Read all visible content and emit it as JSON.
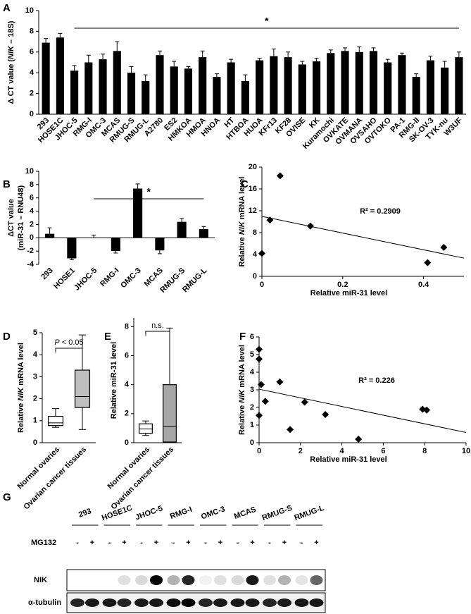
{
  "chart_data": [
    {
      "type": "bar",
      "panel": "A",
      "ylabel": "Δ CT value (NIK – 18S)",
      "ylabel_italic": "NIK",
      "categories": [
        "293",
        "HOSE1C",
        "JHOC-5",
        "RMG-I",
        "OMC-3",
        "MCAS",
        "RMUG-S",
        "RMUG-L",
        "A2780",
        "ES2",
        "HMKOA",
        "HMOA",
        "HNOA",
        "HT",
        "HTBOA",
        "HUOA",
        "KFr13",
        "KF28",
        "OVISE",
        "KK",
        "Kuramochi",
        "OVKATE",
        "OVMANA",
        "OVSAHO",
        "OVTOKO",
        "PA-1",
        "RMG-II",
        "SK-OV-3",
        "TYK-nu",
        "W3UF"
      ],
      "values": [
        6.9,
        7.4,
        4.2,
        5.0,
        5.3,
        6.1,
        4.0,
        3.2,
        5.7,
        4.6,
        4.4,
        5.5,
        3.6,
        5.0,
        3.2,
        5.2,
        5.6,
        5.5,
        4.8,
        5.1,
        5.9,
        6.1,
        6.0,
        6.1,
        5.0,
        5.7,
        3.6,
        5.2,
        4.5,
        5.5
      ],
      "errors": [
        0.4,
        0.4,
        0.5,
        0.7,
        0.5,
        0.9,
        0.6,
        0.6,
        0.4,
        0.5,
        0.2,
        0.6,
        0.3,
        0.3,
        0.6,
        0.2,
        0.7,
        0.5,
        0.3,
        0.3,
        0.3,
        0.3,
        0.5,
        0.3,
        0.3,
        0.2,
        0.3,
        0.4,
        0.6,
        0.5
      ],
      "color": "#000000",
      "ylim": [
        0,
        10
      ],
      "yticks": [
        0,
        2,
        4,
        6,
        8,
        10
      ],
      "annotation": "*"
    },
    {
      "type": "bar",
      "panel": "B",
      "ylabel": [
        "ΔCT value",
        "(miR-31 – RNU48)"
      ],
      "categories": [
        "293",
        "HOSE1",
        "JHOC-5",
        "RMG-I",
        "OMC-3",
        "MCAS",
        "RMUG-S",
        "RMUG-L"
      ],
      "values": [
        0.6,
        -3.1,
        0,
        -2.0,
        7.4,
        -1.9,
        2.4,
        1.3
      ],
      "errors": [
        0.9,
        0.2,
        0.4,
        0.3,
        0.7,
        0.5,
        0.5,
        0.4
      ],
      "color": "#000000",
      "ylim": [
        -4,
        10
      ],
      "yticks": [
        -4,
        -2,
        0,
        2,
        4,
        6,
        8,
        10
      ],
      "annotation": "*"
    },
    {
      "type": "scatter",
      "panel": "C",
      "xlabel": "Relative miR-31 level",
      "ylabel": "Relative NIK mRNA level",
      "ylabel_italic": "NIK",
      "x": [
        0,
        0.02,
        0.045,
        0.12,
        0.41,
        0.45
      ],
      "values": [
        4.2,
        10.3,
        18.4,
        9.2,
        2.5,
        5.3
      ],
      "color": "#000000",
      "xlim": [
        0,
        0.5
      ],
      "xticks": [
        0,
        0.2,
        0.4
      ],
      "ylim": [
        0,
        20
      ],
      "yticks": [
        0,
        4,
        8,
        12,
        16,
        20
      ],
      "trendline": true,
      "annotation": "R² = 0.2909"
    },
    {
      "type": "box",
      "panel": "D",
      "ylabel": "Relative NIK mRNA level",
      "ylabel_italic": "NIK",
      "categories": [
        "Normal ovaries",
        "Ovarian cancer tissues"
      ],
      "boxes": [
        {
          "min": 0.7,
          "q1": 0.78,
          "median": 0.9,
          "q3": 1.2,
          "max": 1.55
        },
        {
          "min": 0.6,
          "q1": 1.6,
          "median": 2.1,
          "q3": 3.3,
          "max": 4.9
        }
      ],
      "colors": [
        "#ffffff",
        "#bfbfbf"
      ],
      "ylim": [
        0,
        5
      ],
      "yticks": [
        0,
        1,
        2,
        3,
        4,
        5
      ],
      "annotation": "P < 0.05",
      "annotation_italic": "P"
    },
    {
      "type": "box",
      "panel": "E",
      "ylabel": "Relative miR-31 level",
      "categories": [
        "Normal ovaries",
        "Ovarian cancer tissues"
      ],
      "boxes": [
        {
          "min": 0.5,
          "q1": 0.65,
          "median": 0.95,
          "q3": 1.3,
          "max": 1.5
        },
        {
          "min": 0,
          "q1": 0.05,
          "median": 1.1,
          "q3": 4.0,
          "max": 7.9
        }
      ],
      "colors": [
        "#ffffff",
        "#a6a6a6"
      ],
      "ylim": [
        0,
        8.6
      ],
      "yticks": [
        0,
        2,
        4,
        6,
        8
      ],
      "annotation": "n.s."
    },
    {
      "type": "scatter",
      "panel": "F",
      "xlabel": "Relative miR-31 level",
      "ylabel": "Relative NIK mRNA level",
      "ylabel_italic": "NIK",
      "x": [
        0,
        0,
        0.1,
        0,
        0.3,
        1,
        1.5,
        2.2,
        3.2,
        4.8,
        7.9,
        8.1
      ],
      "values": [
        5.3,
        4.75,
        3.3,
        1.55,
        2.35,
        3.45,
        0.75,
        2.3,
        1.6,
        0.2,
        1.9,
        1.85
      ],
      "color": "#000000",
      "xlim": [
        0,
        10
      ],
      "xticks": [
        0,
        2,
        4,
        6,
        8,
        10
      ],
      "ylim": [
        0,
        6
      ],
      "yticks": [
        0,
        1,
        2,
        3,
        4,
        5,
        6
      ],
      "trendline": true,
      "annotation": "R² = 0.226"
    }
  ],
  "blot": {
    "panel": "G",
    "lanes": [
      "293",
      "HOSE1C",
      "JHOC-5",
      "RMG-I",
      "OMC-3",
      "MCAS",
      "RMUG-S",
      "RMUG-L"
    ],
    "treatment": "MG132",
    "signs": [
      "-",
      "+"
    ],
    "rows": [
      "NIK",
      "α-tubulin"
    ]
  }
}
